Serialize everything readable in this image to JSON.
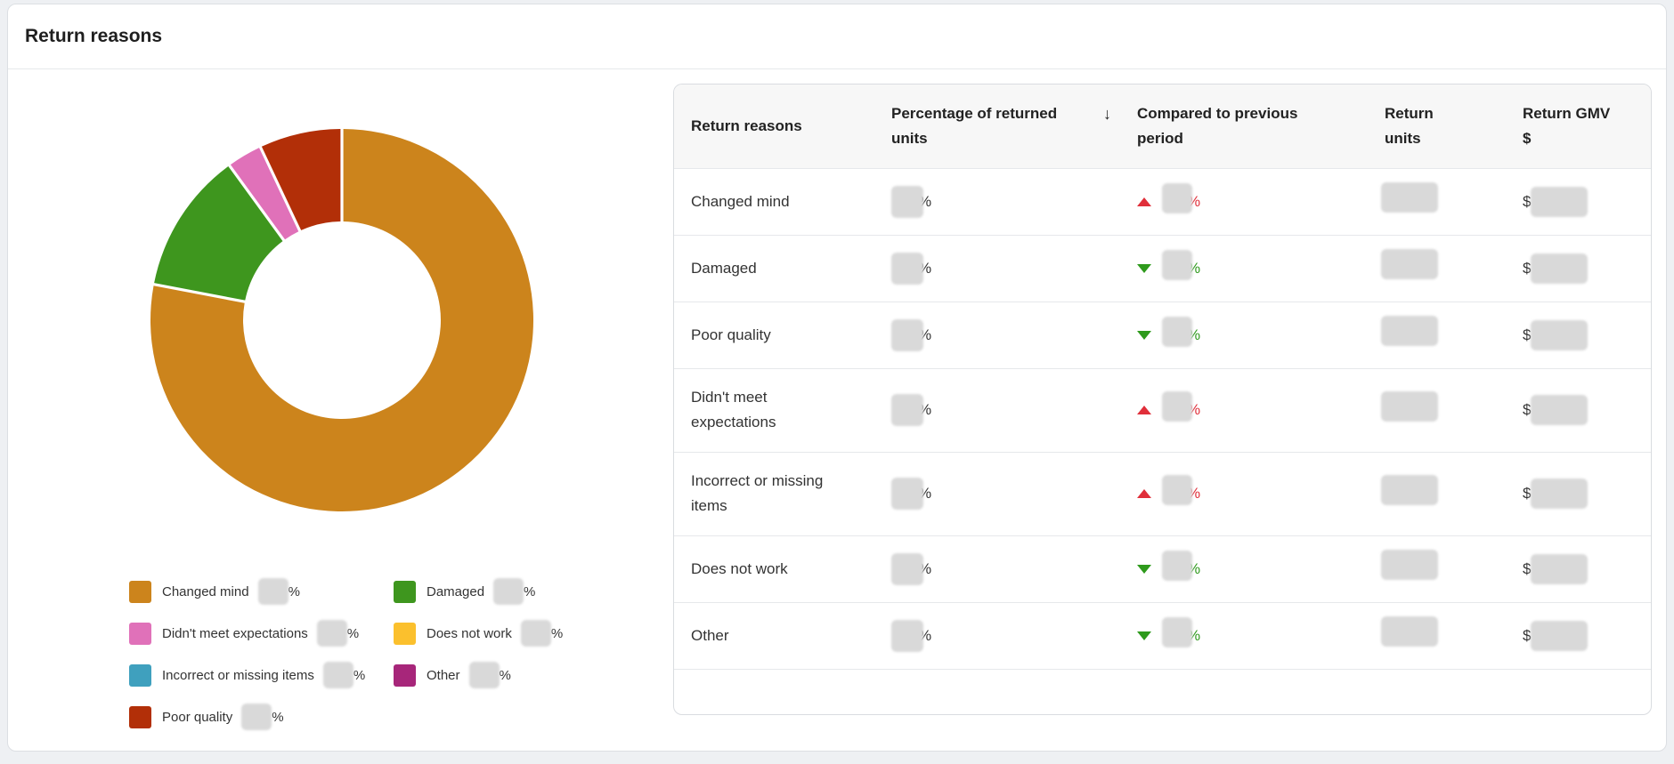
{
  "title": "Return reasons",
  "table": {
    "headers": {
      "reason": "Return reasons",
      "percentage": "Percentage of returned units",
      "compared": "Compared to previous period",
      "units": "Return units",
      "gmv": "Return GMV $"
    },
    "sort_icon": "↓",
    "percent_sign": "%",
    "currency_sign": "$",
    "rows": [
      {
        "reason": "Changed mind",
        "trend": "up"
      },
      {
        "reason": "Damaged",
        "trend": "down"
      },
      {
        "reason": "Poor quality",
        "trend": "down"
      },
      {
        "reason": "Didn't meet expectations",
        "trend": "up"
      },
      {
        "reason": "Incorrect or missing items",
        "trend": "up"
      },
      {
        "reason": "Does not work",
        "trend": "down"
      },
      {
        "reason": "Other",
        "trend": "down"
      }
    ]
  },
  "legend": [
    {
      "label": "Changed mind",
      "color": "#cc841c"
    },
    {
      "label": "Damaged",
      "color": "#3e961e"
    },
    {
      "label": "Didn't meet expectations",
      "color": "#e071b9"
    },
    {
      "label": "Does not work",
      "color": "#fbc02d"
    },
    {
      "label": "Incorrect or missing items",
      "color": "#3fa0be"
    },
    {
      "label": "Other",
      "color": "#a7267a"
    },
    {
      "label": "Poor quality",
      "color": "#b22f08"
    }
  ],
  "colors": {
    "up": "#e02f3a",
    "down": "#2e9a1c"
  },
  "chart_data": {
    "type": "pie",
    "categories": [
      "Changed mind",
      "Damaged",
      "Didn't meet expectations",
      "Poor quality"
    ],
    "values": [
      78,
      12,
      3,
      7
    ]
  }
}
